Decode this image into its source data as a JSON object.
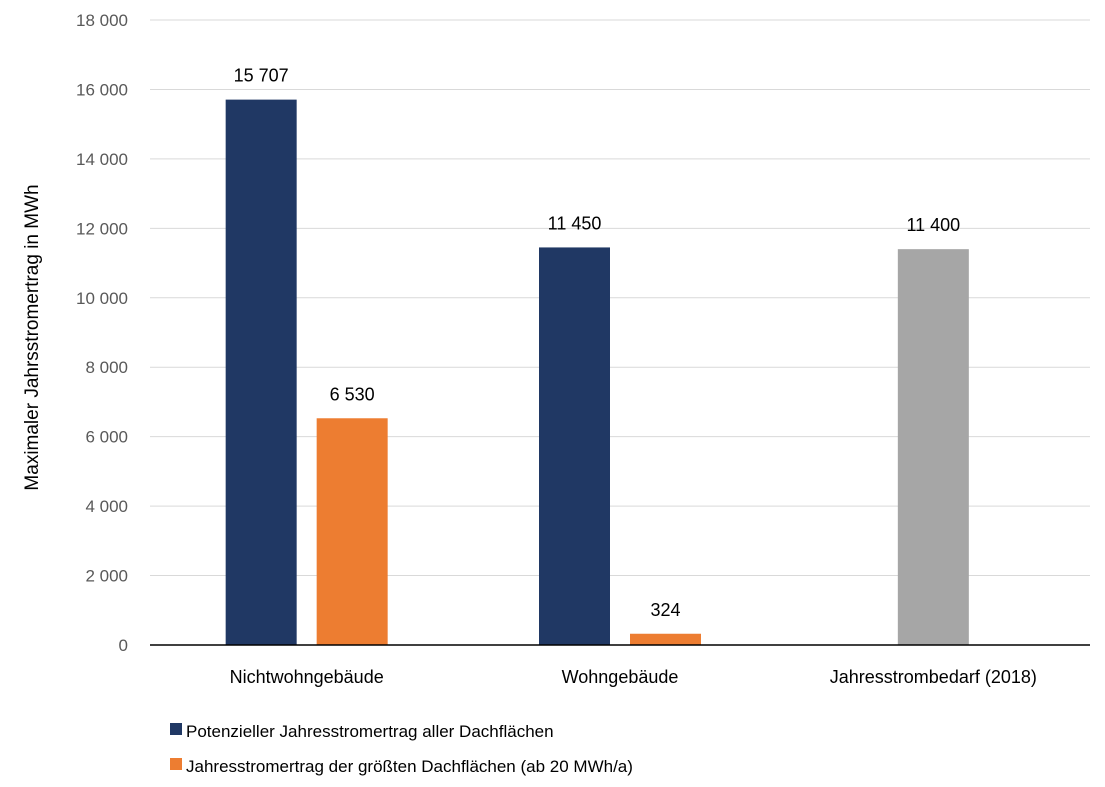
{
  "chart_data": {
    "type": "bar",
    "title": "",
    "xlabel": "",
    "ylabel": "Maximaler Jahrsstromertrag in MWh",
    "ylim": [
      0,
      18000
    ],
    "y_ticks": [
      "0",
      "2 000",
      "4 000",
      "6 000",
      "8 000",
      "10 000",
      "12 000",
      "14 000",
      "16 000",
      "18 000"
    ],
    "y_tick_values": [
      0,
      2000,
      4000,
      6000,
      8000,
      10000,
      12000,
      14000,
      16000,
      18000
    ],
    "grid": true,
    "legend_position": "bottom-left",
    "categories": [
      "Nichtwohngebäude",
      "Wohngebäude",
      "Jahresstrombedarf (2018)"
    ],
    "bars": [
      {
        "category": 0,
        "slot": 0,
        "value": 15707,
        "label": "15 707",
        "color": "#203864"
      },
      {
        "category": 0,
        "slot": 1,
        "value": 6530,
        "label": "6 530",
        "color": "#ed7d31"
      },
      {
        "category": 1,
        "slot": 0,
        "value": 11450,
        "label": "11 450",
        "color": "#203864"
      },
      {
        "category": 1,
        "slot": 1,
        "value": 324,
        "label": "324",
        "color": "#ed7d31"
      },
      {
        "category": 2,
        "slot": 0,
        "value": 11400,
        "label": "11 400",
        "color": "#a6a6a6"
      }
    ],
    "series": [
      {
        "name": "Potenzieller Jahresstromertrag aller Dachflächen",
        "color": "#203864"
      },
      {
        "name": "Jahresstromertrag der größten Dachflächen (ab 20 MWh/a)",
        "color": "#ed7d31"
      }
    ]
  }
}
